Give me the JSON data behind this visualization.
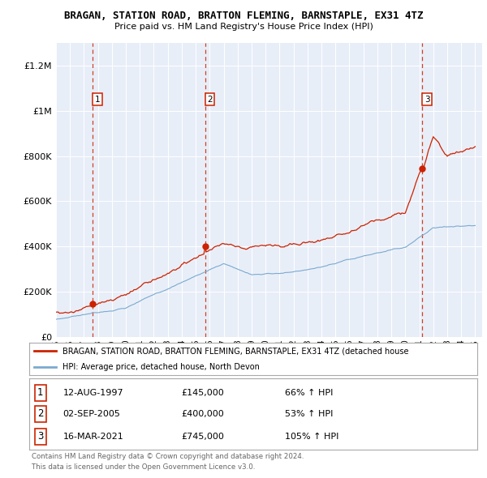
{
  "title": "BRAGAN, STATION ROAD, BRATTON FLEMING, BARNSTAPLE, EX31 4TZ",
  "subtitle": "Price paid vs. HM Land Registry's House Price Index (HPI)",
  "ylim": [
    0,
    1300000
  ],
  "yticks": [
    0,
    200000,
    400000,
    600000,
    800000,
    1000000,
    1200000
  ],
  "ytick_labels": [
    "£0",
    "£200K",
    "£400K",
    "£600K",
    "£800K",
    "£1M",
    "£1.2M"
  ],
  "x_start_year": 1995,
  "x_end_year": 2025,
  "plot_bg_color": "#e8eef8",
  "grid_color": "#ffffff",
  "red_color": "#cc2200",
  "blue_color": "#7aaad0",
  "sale_points": [
    {
      "date_num": 1997.62,
      "price": 145000,
      "label": "1"
    },
    {
      "date_num": 2005.67,
      "price": 400000,
      "label": "2"
    },
    {
      "date_num": 2021.21,
      "price": 745000,
      "label": "3"
    }
  ],
  "sale_dates_text": [
    "12-AUG-1997",
    "02-SEP-2005",
    "16-MAR-2021"
  ],
  "sale_prices_text": [
    "£145,000",
    "£400,000",
    "£745,000"
  ],
  "sale_hpi_text": [
    "66% ↑ HPI",
    "53% ↑ HPI",
    "105% ↑ HPI"
  ],
  "legend_red_label": "BRAGAN, STATION ROAD, BRATTON FLEMING, BARNSTAPLE, EX31 4TZ (detached house",
  "legend_blue_label": "HPI: Average price, detached house, North Devon",
  "footer1": "Contains HM Land Registry data © Crown copyright and database right 2024.",
  "footer2": "This data is licensed under the Open Government Licence v3.0."
}
